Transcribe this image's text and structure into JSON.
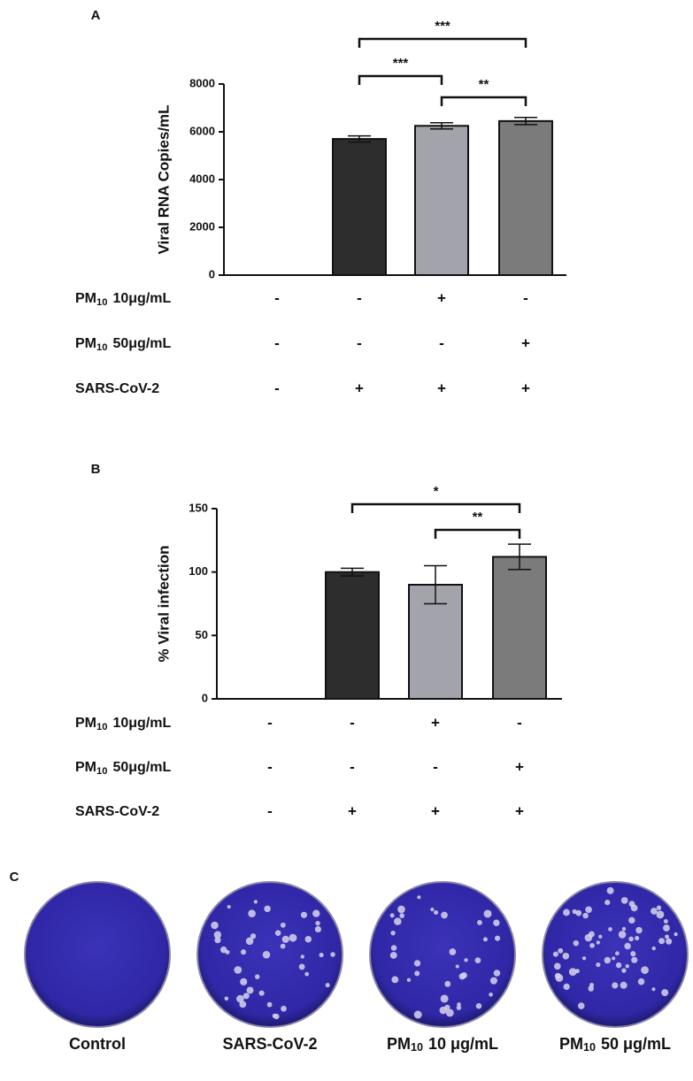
{
  "chart_data": [
    {
      "type": "bar",
      "panel": "A",
      "y_label": "Viral RNA Copies/mL",
      "categories": [
        null,
        null,
        null,
        null
      ],
      "values": [
        0,
        5700,
        6250,
        6450
      ],
      "errors": [
        0,
        130,
        130,
        150
      ],
      "colors": [
        "#2d2d2d",
        "#2d2d2d",
        "#a3a3ab",
        "#7b7b7b"
      ],
      "ylim": [
        0,
        8000
      ],
      "yticks": [
        0,
        2000,
        4000,
        6000,
        8000
      ],
      "annotations": [
        {
          "text": "***"
        },
        {
          "text": "***"
        },
        {
          "text": "**"
        }
      ],
      "conditions": [
        {
          "label": {
            "base": "PM",
            "sub": "10",
            "rest": "10μg/mL"
          },
          "signs": [
            "-",
            "-",
            "+",
            "-"
          ]
        },
        {
          "label": {
            "base": "PM",
            "sub": "10",
            "rest": "50μg/mL"
          },
          "signs": [
            "-",
            "-",
            "-",
            "+"
          ]
        },
        {
          "label": {
            "base": "SARS-CoV-2"
          },
          "signs": [
            "-",
            "+",
            "+",
            "+"
          ]
        }
      ]
    },
    {
      "type": "bar",
      "panel": "B",
      "y_label": "% Viral infection",
      "categories": [
        null,
        null,
        null,
        null
      ],
      "values": [
        0,
        100,
        90,
        112
      ],
      "errors": [
        0,
        3,
        15,
        10
      ],
      "colors": [
        "#2d2d2d",
        "#2d2d2d",
        "#a3a3ab",
        "#7b7b7b"
      ],
      "ylim": [
        0,
        150
      ],
      "yticks": [
        0,
        50,
        100,
        150
      ],
      "annotations": [
        {
          "text": "*"
        },
        {
          "text": "**"
        }
      ],
      "conditions": [
        {
          "label": {
            "base": "PM",
            "sub": "10",
            "rest": "10μg/mL"
          },
          "signs": [
            "-",
            "-",
            "+",
            "-"
          ]
        },
        {
          "label": {
            "base": "PM",
            "sub": "10",
            "rest": "50μg/mL"
          },
          "signs": [
            "-",
            "-",
            "-",
            "+"
          ]
        },
        {
          "label": {
            "base": "SARS-CoV-2"
          },
          "signs": [
            "-",
            "+",
            "+",
            "+"
          ]
        }
      ]
    }
  ],
  "plates": {
    "panel": "C",
    "labels": [
      {
        "base": "Control"
      },
      {
        "base": "SARS-CoV-2"
      },
      {
        "base": "PM",
        "sub": "10",
        "rest": "10 μg/mL"
      },
      {
        "base": "PM",
        "sub": "10",
        "rest": "50 μg/mL"
      }
    ]
  }
}
